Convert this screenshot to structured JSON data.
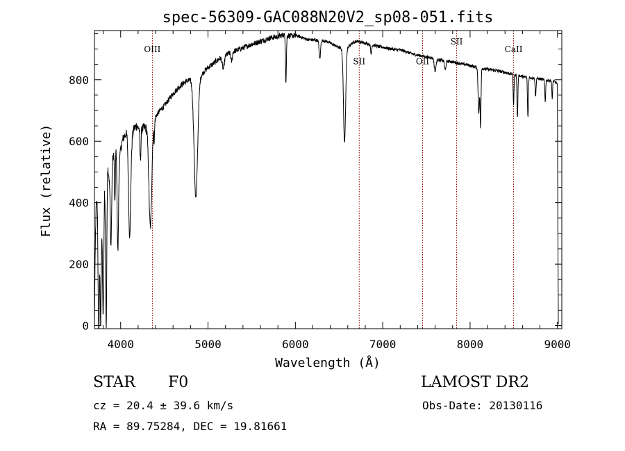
{
  "chart_data": {
    "type": "line",
    "title": "spec-56309-GAC088N20V2_sp08-051.fits",
    "xlabel": "Wavelength (Å)",
    "ylabel": "Flux (relative)",
    "xlim": [
      3700,
      9050
    ],
    "ylim": [
      -10,
      960
    ],
    "x_ticks": [
      4000,
      5000,
      6000,
      7000,
      8000,
      9000
    ],
    "y_ticks": [
      0,
      200,
      400,
      600,
      800
    ],
    "grid": false,
    "line_color": "#000000",
    "marker_color": "#8b0000",
    "continuum": [
      [
        3700,
        10
      ],
      [
        3705,
        140
      ],
      [
        3712,
        300
      ],
      [
        3720,
        390
      ],
      [
        3735,
        420
      ],
      [
        3750,
        300
      ],
      [
        3760,
        410
      ],
      [
        3775,
        330
      ],
      [
        3790,
        440
      ],
      [
        3805,
        350
      ],
      [
        3815,
        470
      ],
      [
        3835,
        270
      ],
      [
        3850,
        520
      ],
      [
        3870,
        480
      ],
      [
        3880,
        520
      ],
      [
        3900,
        540
      ],
      [
        3920,
        560
      ],
      [
        3945,
        580
      ],
      [
        3970,
        560
      ],
      [
        3990,
        550
      ],
      [
        4010,
        590
      ],
      [
        4030,
        610
      ],
      [
        4050,
        620
      ],
      [
        4080,
        630
      ],
      [
        4100,
        630
      ],
      [
        4120,
        600
      ],
      [
        4150,
        640
      ],
      [
        4180,
        650
      ],
      [
        4200,
        645
      ],
      [
        4240,
        640
      ],
      [
        4280,
        645
      ],
      [
        4320,
        640
      ],
      [
        4360,
        660
      ],
      [
        4400,
        680
      ],
      [
        4450,
        700
      ],
      [
        4500,
        715
      ],
      [
        4550,
        735
      ],
      [
        4600,
        755
      ],
      [
        4650,
        770
      ],
      [
        4700,
        785
      ],
      [
        4750,
        795
      ],
      [
        4800,
        800
      ],
      [
        4830,
        790
      ],
      [
        4900,
        805
      ],
      [
        4950,
        825
      ],
      [
        5000,
        840
      ],
      [
        5050,
        850
      ],
      [
        5100,
        862
      ],
      [
        5150,
        872
      ],
      [
        5200,
        880
      ],
      [
        5250,
        887
      ],
      [
        5300,
        893
      ],
      [
        5350,
        898
      ],
      [
        5400,
        903
      ],
      [
        5450,
        910
      ],
      [
        5500,
        915
      ],
      [
        5550,
        920
      ],
      [
        5600,
        925
      ],
      [
        5650,
        930
      ],
      [
        5700,
        935
      ],
      [
        5750,
        938
      ],
      [
        5800,
        940
      ],
      [
        5850,
        945
      ],
      [
        5900,
        945
      ],
      [
        5950,
        942
      ],
      [
        6000,
        945
      ],
      [
        6050,
        940
      ],
      [
        6100,
        935
      ],
      [
        6150,
        930
      ],
      [
        6200,
        930
      ],
      [
        6250,
        928
      ],
      [
        6300,
        928
      ],
      [
        6350,
        925
      ],
      [
        6400,
        920
      ],
      [
        6450,
        912
      ],
      [
        6500,
        905
      ],
      [
        6540,
        900
      ],
      [
        6600,
        905
      ],
      [
        6650,
        920
      ],
      [
        6700,
        925
      ],
      [
        6750,
        922
      ],
      [
        6800,
        920
      ],
      [
        6850,
        915
      ],
      [
        6900,
        912
      ],
      [
        6950,
        908
      ],
      [
        7000,
        906
      ],
      [
        7050,
        903
      ],
      [
        7100,
        900
      ],
      [
        7150,
        898
      ],
      [
        7200,
        897
      ],
      [
        7250,
        893
      ],
      [
        7300,
        888
      ],
      [
        7350,
        883
      ],
      [
        7400,
        880
      ],
      [
        7450,
        878
      ],
      [
        7500,
        874
      ],
      [
        7550,
        872
      ],
      [
        7600,
        868
      ],
      [
        7650,
        864
      ],
      [
        7700,
        862
      ],
      [
        7750,
        860
      ],
      [
        7800,
        858
      ],
      [
        7850,
        855
      ],
      [
        7900,
        852
      ],
      [
        7950,
        850
      ],
      [
        8000,
        846
      ],
      [
        8050,
        842
      ],
      [
        8100,
        840
      ],
      [
        8150,
        836
      ],
      [
        8200,
        834
      ],
      [
        8250,
        832
      ],
      [
        8300,
        830
      ],
      [
        8350,
        827
      ],
      [
        8400,
        824
      ],
      [
        8450,
        820
      ],
      [
        8500,
        818
      ],
      [
        8550,
        815
      ],
      [
        8600,
        810
      ],
      [
        8650,
        808
      ],
      [
        8700,
        806
      ],
      [
        8750,
        805
      ],
      [
        8800,
        803
      ],
      [
        8850,
        800
      ],
      [
        8900,
        798
      ],
      [
        8950,
        795
      ],
      [
        8990,
        790
      ],
      [
        9000,
        780
      ],
      [
        9005,
        300
      ],
      [
        9010,
        10
      ]
    ],
    "absorption_lines": [
      [
        3750,
        380,
        8
      ],
      [
        3771,
        340,
        6
      ],
      [
        3798,
        350,
        8
      ],
      [
        3835,
        300,
        6
      ],
      [
        3889,
        270,
        8
      ],
      [
        3934,
        180,
        5
      ],
      [
        3968,
        320,
        8
      ],
      [
        4102,
        330,
        12
      ],
      [
        4226,
        100,
        6
      ],
      [
        4340,
        330,
        16
      ],
      [
        4384,
        60,
        5
      ],
      [
        4861,
        380,
        20
      ],
      [
        5175,
        40,
        12
      ],
      [
        5270,
        30,
        8
      ],
      [
        5890,
        120,
        4
      ],
      [
        5896,
        80,
        4
      ],
      [
        6280,
        60,
        8
      ],
      [
        6563,
        310,
        12
      ],
      [
        6867,
        30,
        6
      ],
      [
        7600,
        40,
        10
      ],
      [
        7715,
        30,
        8
      ],
      [
        8100,
        150,
        8
      ],
      [
        8120,
        190,
        5
      ],
      [
        8498,
        100,
        5
      ],
      [
        8542,
        140,
        5
      ],
      [
        8662,
        130,
        5
      ],
      [
        8750,
        60,
        5
      ],
      [
        8860,
        70,
        5
      ],
      [
        8940,
        60,
        4
      ]
    ],
    "line_markers": [
      {
        "label": "OIII",
        "x": 4363,
        "label_y": 890
      },
      {
        "label": "SII",
        "x": 6731,
        "label_y": 850
      },
      {
        "label": "OII",
        "x": 7456,
        "label_y": 850
      },
      {
        "label": "SII",
        "x": 7846,
        "label_y": 915
      },
      {
        "label": "CaII",
        "x": 8498,
        "label_y": 890
      }
    ]
  },
  "info": {
    "object_class": "STAR",
    "subclass": "F0",
    "survey": "LAMOST DR2",
    "redshift": "cz = 20.4 ± 39.6 km/s",
    "obs_date": "Obs-Date: 20130116",
    "coords": "RA =  89.75284, DEC =  19.81661"
  }
}
